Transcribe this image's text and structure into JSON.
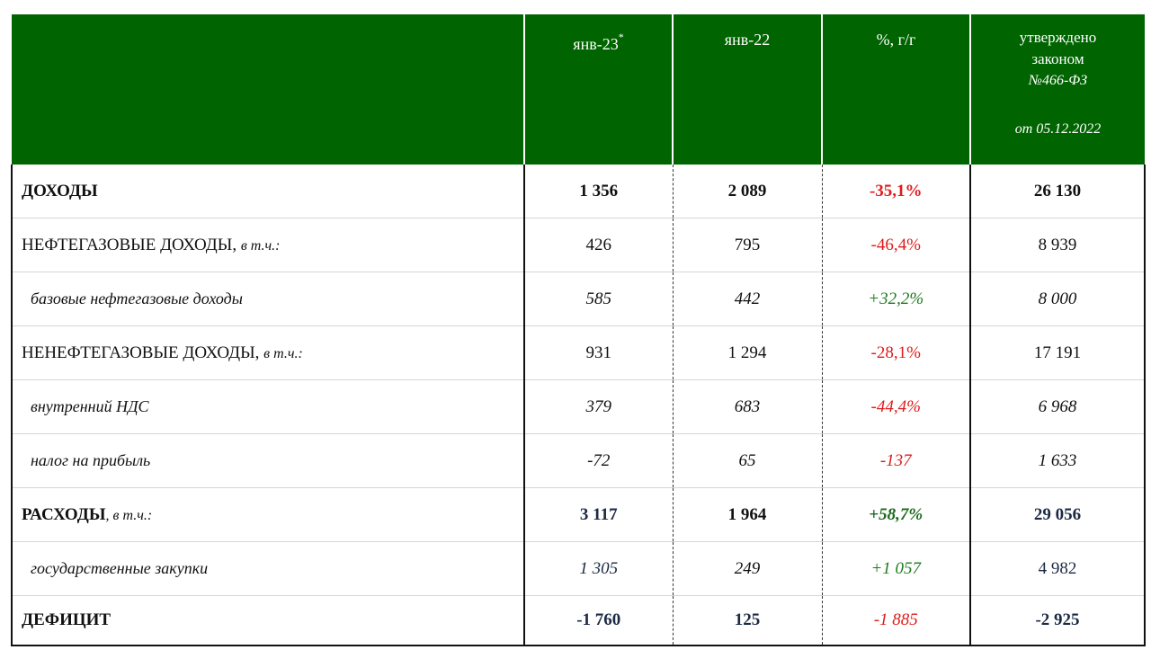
{
  "header": {
    "col1": "янв-23",
    "col1_mark": "*",
    "col2": "янв-22",
    "col3": "%, г/г",
    "col4_line1": "утверждено",
    "col4_line2": "законом",
    "col4_line3": "№466-ФЗ",
    "col4_line4": "от 05.12.2022"
  },
  "rows": [
    {
      "label": "ДОХОДЫ",
      "note": "",
      "jan23": "1 356",
      "jan22": "2 089",
      "yoy": "-35,1%",
      "approved": "26 130"
    },
    {
      "label": "НЕФТЕГАЗОВЫЕ ДОХОДЫ,",
      "note": "в т.ч.:",
      "jan23": "426",
      "jan22": "795",
      "yoy": "-46,4%",
      "approved": "8 939"
    },
    {
      "label": "базовые нефтегазовые доходы",
      "note": "",
      "jan23": "585",
      "jan22": "442",
      "yoy": "+32,2%",
      "approved": "8 000"
    },
    {
      "label": "НЕНЕФТЕГАЗОВЫЕ ДОХОДЫ,",
      "note": "в т.ч.:",
      "jan23": "931",
      "jan22": "1 294",
      "yoy": "-28,1%",
      "approved": "17 191"
    },
    {
      "label": "внутренний НДС",
      "note": "",
      "jan23": "379",
      "jan22": "683",
      "yoy": "-44,4%",
      "approved": "6 968"
    },
    {
      "label": "налог на прибыль",
      "note": "",
      "jan23": "-72",
      "jan22": "65",
      "yoy": "-137",
      "approved": "1 633"
    },
    {
      "label": "РАСХОДЫ",
      "note": ", в т.ч.:",
      "jan23": "3 117",
      "jan22": "1 964",
      "yoy": "+58,7%",
      "approved": "29 056"
    },
    {
      "label": "государственные закупки",
      "note": "",
      "jan23": "1 305",
      "jan22": "249",
      "yoy": "+1 057",
      "approved": "4 982"
    },
    {
      "label": "ДЕФИЦИТ",
      "note": "",
      "jan23": "-1 760",
      "jan22": "125",
      "yoy": "-1 885",
      "approved": "-2 925"
    }
  ],
  "colors": {
    "header_bg": "#006400",
    "negative": "#e01b1b",
    "positive": "#1f7a1f"
  }
}
